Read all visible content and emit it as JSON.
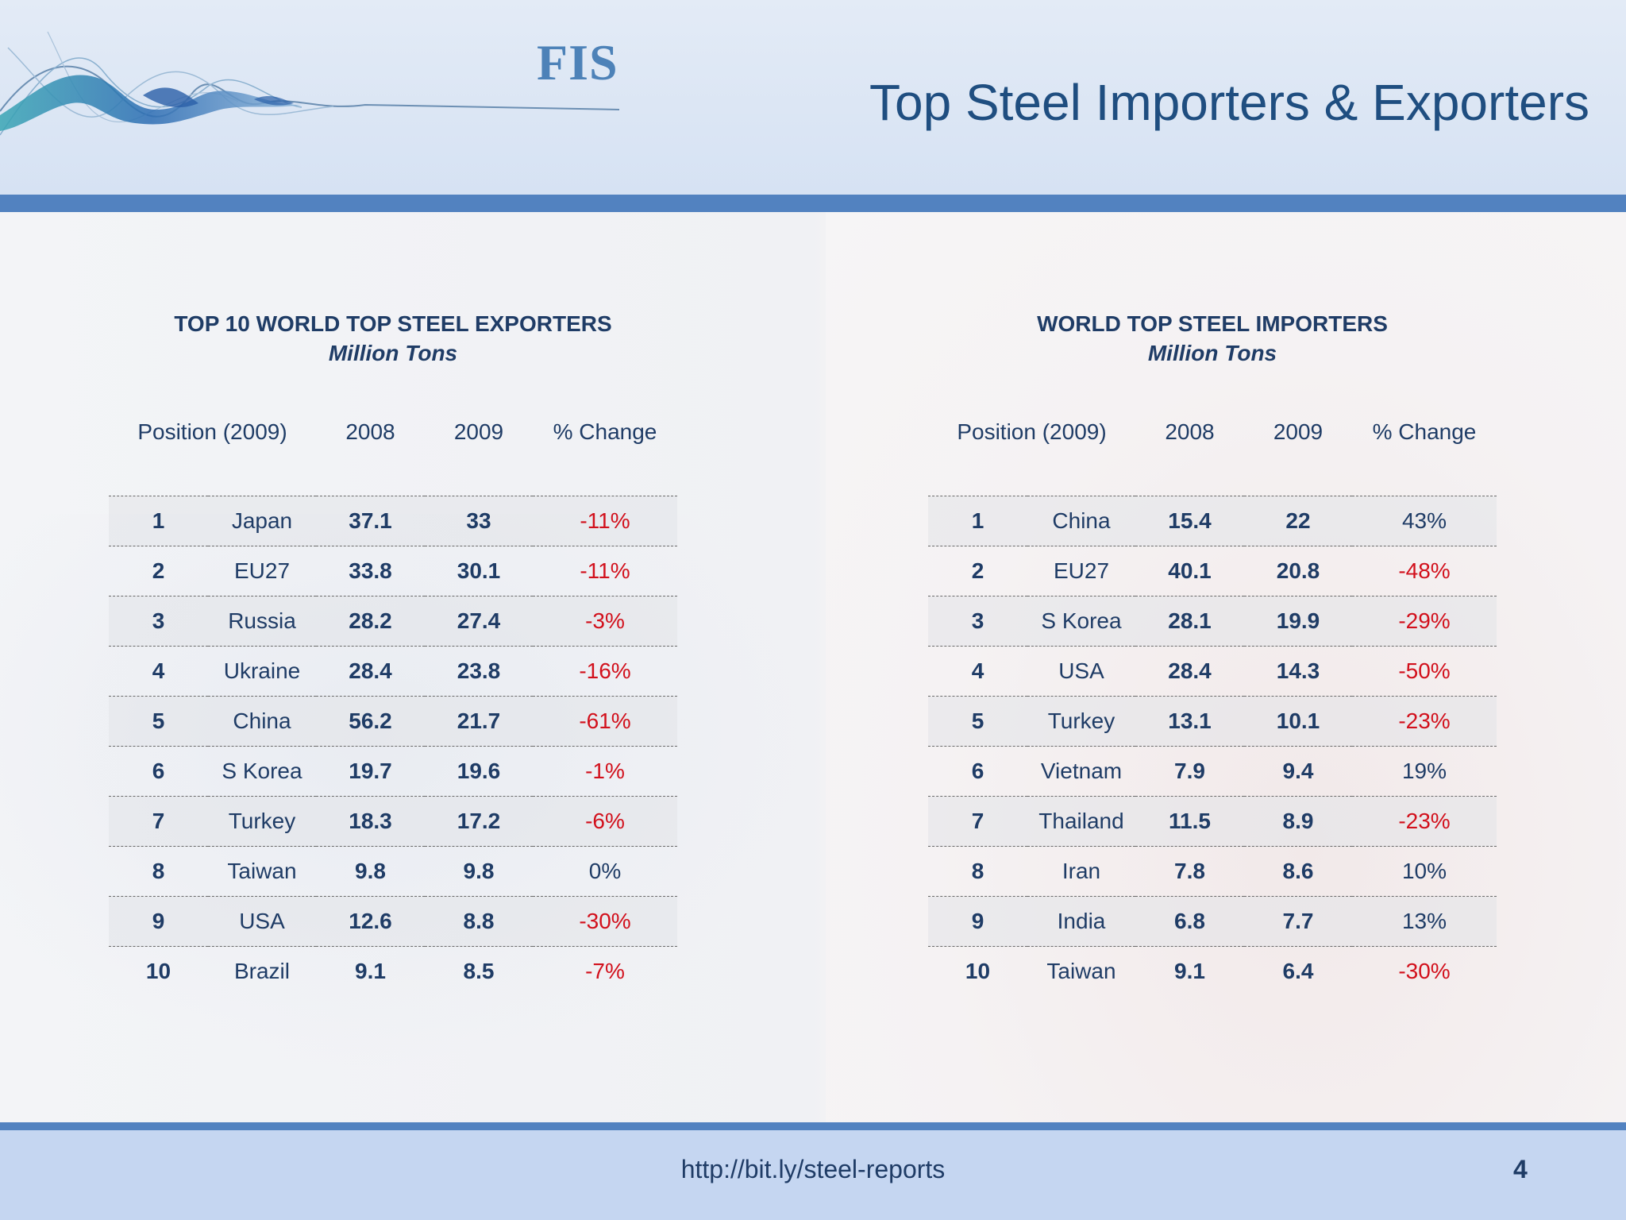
{
  "header": {
    "logo_text": "FIS",
    "title": "Top Steel Importers & Exporters"
  },
  "exporters": {
    "title": "TOP 10 WORLD TOP STEEL EXPORTERS",
    "subtitle": "Million Tons",
    "columns": [
      "Position (2009)",
      "2008",
      "2009",
      "% Change"
    ],
    "rows": [
      {
        "pos": "1",
        "country": "Japan",
        "v2008": "37.1",
        "v2009": "33",
        "change": "-11%",
        "negative": true
      },
      {
        "pos": "2",
        "country": "EU27",
        "v2008": "33.8",
        "v2009": "30.1",
        "change": "-11%",
        "negative": true
      },
      {
        "pos": "3",
        "country": "Russia",
        "v2008": "28.2",
        "v2009": "27.4",
        "change": "-3%",
        "negative": true
      },
      {
        "pos": "4",
        "country": "Ukraine",
        "v2008": "28.4",
        "v2009": "23.8",
        "change": "-16%",
        "negative": true
      },
      {
        "pos": "5",
        "country": "China",
        "v2008": "56.2",
        "v2009": "21.7",
        "change": "-61%",
        "negative": true
      },
      {
        "pos": "6",
        "country": "S Korea",
        "v2008": "19.7",
        "v2009": "19.6",
        "change": "-1%",
        "negative": true
      },
      {
        "pos": "7",
        "country": "Turkey",
        "v2008": "18.3",
        "v2009": "17.2",
        "change": "-6%",
        "negative": true
      },
      {
        "pos": "8",
        "country": "Taiwan",
        "v2008": "9.8",
        "v2009": "9.8",
        "change": "0%",
        "negative": false
      },
      {
        "pos": "9",
        "country": "USA",
        "v2008": "12.6",
        "v2009": "8.8",
        "change": "-30%",
        "negative": true
      },
      {
        "pos": "10",
        "country": "Brazil",
        "v2008": "9.1",
        "v2009": "8.5",
        "change": "-7%",
        "negative": true
      }
    ]
  },
  "importers": {
    "title": "WORLD TOP STEEL IMPORTERS",
    "subtitle": "Million Tons",
    "columns": [
      "Position (2009)",
      "2008",
      "2009",
      "% Change"
    ],
    "rows": [
      {
        "pos": "1",
        "country": "China",
        "v2008": "15.4",
        "v2009": "22",
        "change": "43%",
        "negative": false
      },
      {
        "pos": "2",
        "country": "EU27",
        "v2008": "40.1",
        "v2009": "20.8",
        "change": "-48%",
        "negative": true
      },
      {
        "pos": "3",
        "country": "S Korea",
        "v2008": "28.1",
        "v2009": "19.9",
        "change": "-29%",
        "negative": true
      },
      {
        "pos": "4",
        "country": "USA",
        "v2008": "28.4",
        "v2009": "14.3",
        "change": "-50%",
        "negative": true
      },
      {
        "pos": "5",
        "country": "Turkey",
        "v2008": "13.1",
        "v2009": "10.1",
        "change": "-23%",
        "negative": true
      },
      {
        "pos": "6",
        "country": "Vietnam",
        "v2008": "7.9",
        "v2009": "9.4",
        "change": "19%",
        "negative": false
      },
      {
        "pos": "7",
        "country": "Thailand",
        "v2008": "11.5",
        "v2009": "8.9",
        "change": "-23%",
        "negative": true
      },
      {
        "pos": "8",
        "country": "Iran",
        "v2008": "7.8",
        "v2009": "8.6",
        "change": "10%",
        "negative": false
      },
      {
        "pos": "9",
        "country": "India",
        "v2008": "6.8",
        "v2009": "7.7",
        "change": "13%",
        "negative": false
      },
      {
        "pos": "10",
        "country": "Taiwan",
        "v2008": "9.1",
        "v2009": "6.4",
        "change": "-30%",
        "negative": true
      }
    ]
  },
  "footer": {
    "url": "http://bit.ly/steel-reports",
    "page_number": "4"
  },
  "colors": {
    "brand_blue": "#1f3c66",
    "accent_bar": "#5282c0",
    "negative": "#d2101c"
  }
}
